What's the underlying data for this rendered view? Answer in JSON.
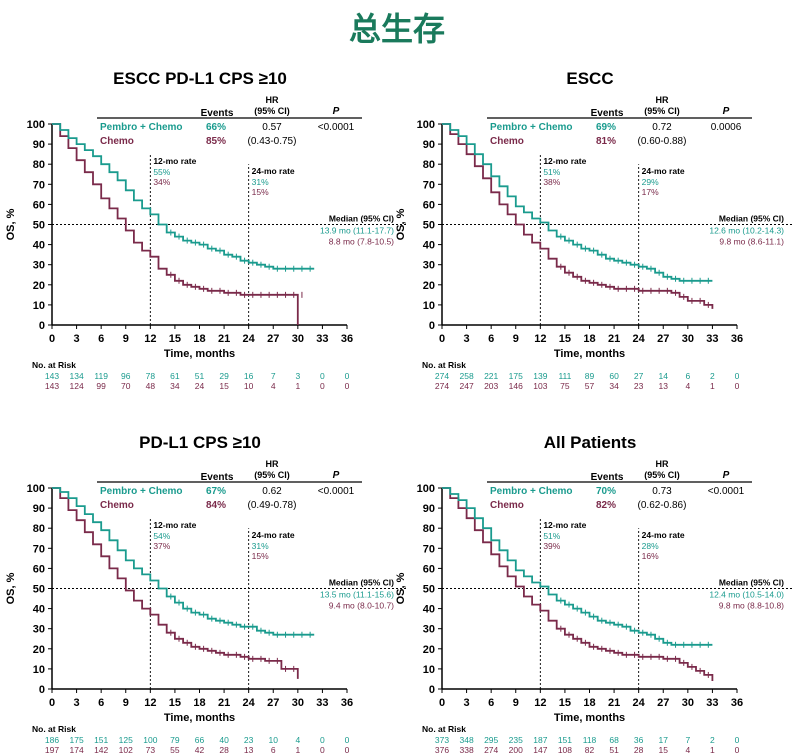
{
  "page_title": "总生存",
  "colors": {
    "pembro": "#1a9b8e",
    "chemo": "#7a2a4a",
    "title": "#1a7a5c"
  },
  "common": {
    "events_label": "Events",
    "hr_label_1": "HR",
    "hr_label_2": "(95% CI)",
    "p_label": "P",
    "median_label": "Median (95% CI)",
    "rate12_label": "12-mo rate",
    "rate24_label": "24-mo rate",
    "y_axis_label": "OS, %",
    "x_axis_label": "Time, months",
    "risk_label": "No. at Risk",
    "x_ticks": [
      0,
      3,
      6,
      9,
      12,
      15,
      18,
      21,
      24,
      27,
      30,
      33,
      36
    ],
    "y_ticks": [
      0,
      10,
      20,
      30,
      40,
      50,
      60,
      70,
      80,
      90,
      100
    ]
  },
  "chart_data": [
    {
      "type": "line",
      "title": "ESCC PD-L1 CPS ≥10",
      "xlabel": "Time, months",
      "ylabel": "OS, %",
      "xlim": [
        0,
        36
      ],
      "ylim": [
        0,
        100
      ],
      "series": [
        {
          "name": "Pembro + Chemo",
          "events": "66%",
          "hr": "0.57",
          "ci": "(0.43-0.75)",
          "p": "<0.0001",
          "rate12": "55%",
          "rate24": "31%",
          "median": "13.9 mo (11.1-17.7)",
          "at_risk": [
            "143",
            "134",
            "119",
            "96",
            "78",
            "61",
            "51",
            "29",
            "16",
            "7",
            "3",
            "0",
            "0"
          ],
          "x": [
            0,
            1,
            2,
            3,
            4,
            5,
            6,
            7,
            8,
            9,
            10,
            11,
            12,
            13,
            14,
            15,
            16,
            17,
            18,
            19,
            20,
            21,
            22,
            23,
            24,
            25,
            26,
            27,
            28,
            29,
            30,
            31,
            32
          ],
          "y": [
            100,
            97,
            93,
            90,
            87,
            84,
            80,
            76,
            72,
            67,
            62,
            58,
            55,
            50,
            46,
            44,
            42,
            41,
            40,
            38,
            37,
            35,
            34,
            32,
            31,
            30,
            29,
            28,
            28,
            28,
            28,
            28,
            28
          ]
        },
        {
          "name": "Chemo",
          "events": "85%",
          "rate12": "34%",
          "rate24": "15%",
          "median": "8.8 mo (7.8-10.5)",
          "at_risk": [
            "143",
            "124",
            "99",
            "70",
            "48",
            "34",
            "24",
            "15",
            "10",
            "4",
            "1",
            "0",
            "0"
          ],
          "x": [
            0,
            1,
            2,
            3,
            4,
            5,
            6,
            7,
            8,
            9,
            10,
            11,
            12,
            13,
            14,
            15,
            16,
            17,
            18,
            19,
            20,
            21,
            22,
            23,
            24,
            25,
            26,
            27,
            28,
            29,
            30,
            30
          ],
          "y": [
            100,
            94,
            88,
            82,
            76,
            70,
            63,
            58,
            53,
            47,
            41,
            37,
            34,
            28,
            25,
            22,
            20,
            19,
            18,
            17,
            17,
            16,
            16,
            15,
            15,
            15,
            15,
            15,
            15,
            15,
            15,
            0
          ]
        }
      ]
    },
    {
      "type": "line",
      "title": "ESCC",
      "xlabel": "Time, months",
      "ylabel": "OS, %",
      "xlim": [
        0,
        36
      ],
      "ylim": [
        0,
        100
      ],
      "series": [
        {
          "name": "Pembro + Chemo",
          "events": "69%",
          "hr": "0.72",
          "ci": "(0.60-0.88)",
          "p": "0.0006",
          "rate12": "51%",
          "rate24": "29%",
          "median": "12.6 mo (10.2-14.3)",
          "at_risk": [
            "274",
            "258",
            "221",
            "175",
            "139",
            "111",
            "89",
            "60",
            "27",
            "14",
            "6",
            "2",
            "0"
          ],
          "x": [
            0,
            1,
            2,
            3,
            4,
            5,
            6,
            7,
            8,
            9,
            10,
            11,
            12,
            13,
            14,
            15,
            16,
            17,
            18,
            19,
            20,
            21,
            22,
            23,
            24,
            25,
            26,
            27,
            28,
            29,
            30,
            31,
            32,
            33
          ],
          "y": [
            100,
            97,
            94,
            90,
            85,
            80,
            74,
            69,
            64,
            59,
            56,
            53,
            51,
            47,
            44,
            42,
            40,
            38,
            37,
            35,
            33,
            32,
            31,
            30,
            29,
            28,
            26,
            24,
            23,
            22,
            22,
            22,
            22,
            22
          ]
        },
        {
          "name": "Chemo",
          "events": "81%",
          "rate12": "38%",
          "rate24": "17%",
          "median": "9.8 mo (8.6-11.1)",
          "at_risk": [
            "274",
            "247",
            "203",
            "146",
            "103",
            "75",
            "57",
            "34",
            "23",
            "13",
            "4",
            "1",
            "0"
          ],
          "x": [
            0,
            1,
            2,
            3,
            4,
            5,
            6,
            7,
            8,
            9,
            10,
            11,
            12,
            13,
            14,
            15,
            16,
            17,
            18,
            19,
            20,
            21,
            22,
            23,
            24,
            25,
            26,
            27,
            28,
            29,
            30,
            31,
            32,
            33
          ],
          "y": [
            100,
            95,
            90,
            85,
            79,
            73,
            66,
            60,
            55,
            50,
            45,
            41,
            38,
            33,
            29,
            26,
            24,
            22,
            21,
            20,
            19,
            18,
            18,
            18,
            17,
            17,
            17,
            17,
            16,
            14,
            12,
            12,
            10,
            8
          ]
        }
      ]
    },
    {
      "type": "line",
      "title": "PD-L1 CPS ≥10",
      "xlabel": "Time, months",
      "ylabel": "OS, %",
      "xlim": [
        0,
        36
      ],
      "ylim": [
        0,
        100
      ],
      "series": [
        {
          "name": "Pembro + Chemo",
          "events": "67%",
          "hr": "0.62",
          "ci": "(0.49-0.78)",
          "p": "<0.0001",
          "rate12": "54%",
          "rate24": "31%",
          "median": "13.5 mo (11.1-15.6)",
          "at_risk": [
            "186",
            "175",
            "151",
            "125",
            "100",
            "79",
            "66",
            "40",
            "23",
            "10",
            "4",
            "0",
            "0"
          ],
          "x": [
            0,
            1,
            2,
            3,
            4,
            5,
            6,
            7,
            8,
            9,
            10,
            11,
            12,
            13,
            14,
            15,
            16,
            17,
            18,
            19,
            20,
            21,
            22,
            23,
            24,
            25,
            26,
            27,
            28,
            29,
            30,
            31,
            32
          ],
          "y": [
            100,
            98,
            95,
            91,
            87,
            83,
            79,
            74,
            69,
            64,
            60,
            57,
            54,
            50,
            46,
            43,
            40,
            38,
            37,
            35,
            34,
            33,
            32,
            31,
            31,
            29,
            28,
            27,
            27,
            27,
            27,
            27,
            27
          ]
        },
        {
          "name": "Chemo",
          "events": "84%",
          "rate12": "37%",
          "rate24": "15%",
          "median": "9.4 mo (8.0-10.7)",
          "at_risk": [
            "197",
            "174",
            "142",
            "102",
            "73",
            "55",
            "42",
            "28",
            "13",
            "6",
            "1",
            "0",
            "0"
          ],
          "x": [
            0,
            1,
            2,
            3,
            4,
            5,
            6,
            7,
            8,
            9,
            10,
            11,
            12,
            13,
            14,
            15,
            16,
            17,
            18,
            19,
            20,
            21,
            22,
            23,
            24,
            25,
            26,
            27,
            28,
            29,
            30
          ],
          "y": [
            100,
            95,
            89,
            84,
            78,
            72,
            66,
            60,
            55,
            49,
            44,
            40,
            37,
            32,
            28,
            25,
            23,
            21,
            20,
            19,
            18,
            17,
            17,
            16,
            15,
            15,
            14,
            14,
            10,
            10,
            5
          ]
        }
      ]
    },
    {
      "type": "line",
      "title": "All Patients",
      "xlabel": "Time, months",
      "ylabel": "OS, %",
      "xlim": [
        0,
        36
      ],
      "ylim": [
        0,
        100
      ],
      "series": [
        {
          "name": "Pembro + Chemo",
          "events": "70%",
          "hr": "0.73",
          "ci": "(0.62-0.86)",
          "p": "<0.0001",
          "rate12": "51%",
          "rate24": "28%",
          "median": "12.4 mo (10.5-14.0)",
          "at_risk": [
            "373",
            "348",
            "295",
            "235",
            "187",
            "151",
            "118",
            "68",
            "36",
            "17",
            "7",
            "2",
            "0"
          ],
          "x": [
            0,
            1,
            2,
            3,
            4,
            5,
            6,
            7,
            8,
            9,
            10,
            11,
            12,
            13,
            14,
            15,
            16,
            17,
            18,
            19,
            20,
            21,
            22,
            23,
            24,
            25,
            26,
            27,
            28,
            29,
            30,
            31,
            32,
            33
          ],
          "y": [
            100,
            97,
            94,
            90,
            85,
            80,
            74,
            69,
            64,
            59,
            56,
            53,
            51,
            47,
            44,
            42,
            40,
            38,
            36,
            34,
            33,
            32,
            31,
            29,
            28,
            27,
            25,
            23,
            22,
            22,
            22,
            22,
            22,
            22
          ]
        },
        {
          "name": "Chemo",
          "events": "82%",
          "rate12": "39%",
          "rate24": "16%",
          "median": "9.8 mo (8.8-10.8)",
          "at_risk": [
            "376",
            "338",
            "274",
            "200",
            "147",
            "108",
            "82",
            "51",
            "28",
            "15",
            "4",
            "1",
            "0"
          ],
          "x": [
            0,
            1,
            2,
            3,
            4,
            5,
            6,
            7,
            8,
            9,
            10,
            11,
            12,
            13,
            14,
            15,
            16,
            17,
            18,
            19,
            20,
            21,
            22,
            23,
            24,
            25,
            26,
            27,
            28,
            29,
            30,
            31,
            32,
            33
          ],
          "y": [
            100,
            95,
            90,
            85,
            79,
            73,
            67,
            61,
            56,
            51,
            46,
            42,
            39,
            34,
            30,
            27,
            25,
            23,
            21,
            20,
            19,
            18,
            17,
            17,
            16,
            16,
            16,
            15,
            15,
            13,
            11,
            9,
            7,
            4
          ]
        }
      ]
    }
  ]
}
